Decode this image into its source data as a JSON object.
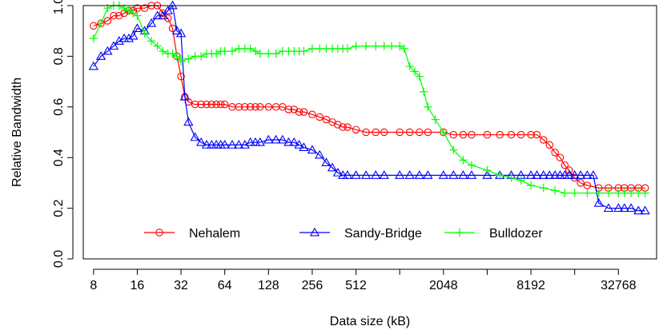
{
  "chart_data": {
    "type": "line",
    "xlabel": "Data size (kB)",
    "ylabel": "Relative Bandwidth",
    "x_scale": "log2",
    "xlim": [
      6.8,
      60000
    ],
    "ylim": [
      0,
      1.0
    ],
    "x_ticks": [
      8,
      16,
      32,
      64,
      128,
      256,
      512,
      2048,
      8192,
      32768
    ],
    "x_tick_positions": [
      8,
      16,
      32,
      64,
      128,
      256,
      512,
      1024,
      2048,
      4096,
      8192,
      16384,
      32768
    ],
    "y_ticks": [
      "0.0",
      "0.2",
      "0.4",
      "0.6",
      "0.8",
      "1.0"
    ],
    "legend_position": "bottom",
    "series": [
      {
        "name": "Nehalem",
        "color": "#ff0000",
        "marker": "circle",
        "x": [
          8,
          9,
          10,
          11,
          12,
          13,
          14,
          15,
          16,
          18,
          20,
          22,
          24,
          26,
          28,
          30,
          32,
          34,
          36,
          40,
          44,
          48,
          52,
          56,
          60,
          64,
          72,
          80,
          88,
          96,
          104,
          112,
          128,
          144,
          160,
          176,
          192,
          208,
          224,
          256,
          288,
          320,
          352,
          384,
          416,
          448,
          512,
          600,
          700,
          800,
          1024,
          1200,
          1400,
          1600,
          2048,
          2400,
          2800,
          3200,
          4096,
          5000,
          6000,
          7000,
          8192,
          9000,
          10000,
          11000,
          12000,
          13000,
          14000,
          15000,
          16384,
          18000,
          20000,
          24000,
          28000,
          32768,
          36000,
          40000,
          45000,
          50000
        ],
        "y": [
          0.92,
          0.93,
          0.94,
          0.96,
          0.96,
          0.97,
          0.98,
          0.98,
          0.99,
          0.99,
          1.0,
          1.0,
          0.97,
          0.95,
          0.91,
          0.8,
          0.72,
          0.64,
          0.62,
          0.61,
          0.61,
          0.61,
          0.61,
          0.61,
          0.61,
          0.61,
          0.6,
          0.6,
          0.6,
          0.6,
          0.6,
          0.6,
          0.6,
          0.6,
          0.6,
          0.59,
          0.59,
          0.58,
          0.58,
          0.57,
          0.56,
          0.55,
          0.54,
          0.53,
          0.52,
          0.52,
          0.51,
          0.5,
          0.5,
          0.5,
          0.5,
          0.5,
          0.5,
          0.5,
          0.5,
          0.49,
          0.49,
          0.49,
          0.49,
          0.49,
          0.49,
          0.49,
          0.49,
          0.49,
          0.47,
          0.45,
          0.42,
          0.4,
          0.37,
          0.35,
          0.32,
          0.3,
          0.29,
          0.28,
          0.28,
          0.28,
          0.28,
          0.28,
          0.28,
          0.28
        ]
      },
      {
        "name": "Sandy-Bridge",
        "color": "#0000ff",
        "marker": "triangle",
        "x": [
          8,
          9,
          10,
          11,
          12,
          13,
          14,
          15,
          16,
          18,
          20,
          22,
          24,
          26,
          28,
          30,
          32,
          34,
          36,
          40,
          44,
          48,
          52,
          56,
          60,
          64,
          72,
          80,
          88,
          96,
          104,
          112,
          128,
          144,
          160,
          176,
          192,
          208,
          224,
          256,
          288,
          320,
          352,
          384,
          416,
          448,
          512,
          600,
          700,
          800,
          1024,
          1200,
          1400,
          1600,
          2048,
          2400,
          2800,
          3200,
          4096,
          5000,
          6000,
          7000,
          8192,
          9000,
          10000,
          11000,
          12000,
          13000,
          14000,
          15000,
          16384,
          18000,
          20000,
          22000,
          24000,
          28000,
          32768,
          36000,
          40000,
          45000,
          50000
        ],
        "y": [
          0.76,
          0.8,
          0.82,
          0.84,
          0.86,
          0.87,
          0.87,
          0.88,
          0.91,
          0.9,
          0.93,
          0.96,
          0.96,
          0.98,
          1.0,
          0.9,
          0.89,
          0.64,
          0.54,
          0.48,
          0.46,
          0.45,
          0.45,
          0.45,
          0.45,
          0.45,
          0.45,
          0.45,
          0.45,
          0.46,
          0.46,
          0.46,
          0.47,
          0.47,
          0.47,
          0.46,
          0.46,
          0.45,
          0.44,
          0.43,
          0.41,
          0.38,
          0.36,
          0.34,
          0.33,
          0.33,
          0.33,
          0.33,
          0.33,
          0.33,
          0.33,
          0.33,
          0.33,
          0.33,
          0.33,
          0.33,
          0.33,
          0.33,
          0.33,
          0.33,
          0.33,
          0.33,
          0.33,
          0.33,
          0.33,
          0.33,
          0.33,
          0.33,
          0.33,
          0.33,
          0.33,
          0.33,
          0.33,
          0.33,
          0.22,
          0.2,
          0.2,
          0.2,
          0.2,
          0.19,
          0.19
        ]
      },
      {
        "name": "Bulldozer",
        "color": "#00ff00",
        "marker": "plus",
        "x": [
          8,
          9,
          10,
          11,
          12,
          13,
          14,
          15,
          16,
          18,
          20,
          22,
          24,
          26,
          28,
          30,
          32,
          36,
          40,
          44,
          48,
          52,
          56,
          60,
          64,
          72,
          80,
          88,
          96,
          104,
          112,
          128,
          144,
          160,
          176,
          192,
          208,
          224,
          256,
          288,
          320,
          352,
          384,
          416,
          448,
          512,
          600,
          700,
          800,
          900,
          1024,
          1100,
          1200,
          1300,
          1400,
          1500,
          1600,
          1800,
          2048,
          2400,
          2800,
          3200,
          4096,
          5000,
          6000,
          7000,
          8192,
          10000,
          12000,
          14000,
          16384,
          20000,
          24000,
          28000,
          32768,
          36000,
          40000,
          45000,
          50000
        ],
        "y": [
          0.87,
          0.93,
          0.99,
          1.0,
          1.0,
          0.99,
          0.98,
          0.97,
          0.96,
          0.89,
          0.86,
          0.84,
          0.82,
          0.81,
          0.81,
          0.8,
          0.78,
          0.79,
          0.8,
          0.8,
          0.81,
          0.81,
          0.81,
          0.82,
          0.82,
          0.82,
          0.83,
          0.83,
          0.83,
          0.82,
          0.81,
          0.81,
          0.81,
          0.82,
          0.82,
          0.82,
          0.82,
          0.82,
          0.83,
          0.83,
          0.83,
          0.83,
          0.83,
          0.83,
          0.83,
          0.84,
          0.84,
          0.84,
          0.84,
          0.84,
          0.84,
          0.83,
          0.76,
          0.74,
          0.72,
          0.66,
          0.6,
          0.55,
          0.5,
          0.43,
          0.39,
          0.37,
          0.35,
          0.33,
          0.32,
          0.31,
          0.29,
          0.28,
          0.27,
          0.26,
          0.26,
          0.26,
          0.26,
          0.26,
          0.26,
          0.26,
          0.26,
          0.26,
          0.26
        ]
      }
    ]
  }
}
